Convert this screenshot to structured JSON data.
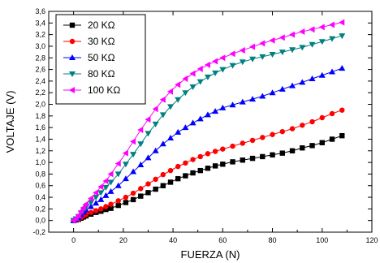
{
  "chart_data": {
    "type": "line",
    "xlabel": "FUERZA (N)",
    "ylabel": "VOLTAJE (V)",
    "xlim": [
      -10,
      120
    ],
    "ylim": [
      -0.2,
      3.6
    ],
    "xticks": [
      "0",
      "20",
      "40",
      "60",
      "80",
      "100",
      "120"
    ],
    "yticks": [
      "-0,2",
      "0,0",
      "0,2",
      "0,4",
      "0,6",
      "0,8",
      "1,0",
      "1,2",
      "1,4",
      "1,6",
      "1,8",
      "2,0",
      "2,2",
      "2,4",
      "2,6",
      "2,8",
      "3,0",
      "3,2",
      "3,4",
      "3,6"
    ],
    "legend_position": "top-left",
    "series": [
      {
        "name": "20 KΩ",
        "color": "#000000",
        "marker": "square",
        "x": [
          0,
          1,
          2,
          3,
          4,
          5,
          7,
          9,
          11,
          13,
          15,
          18,
          21,
          24,
          27,
          30,
          33,
          36,
          39,
          42,
          45,
          48,
          51,
          54,
          57,
          60,
          64,
          68,
          72,
          76,
          80,
          84,
          88,
          92,
          96,
          100,
          104,
          108
        ],
        "y": [
          0.0,
          0.01,
          0.02,
          0.04,
          0.06,
          0.08,
          0.11,
          0.14,
          0.16,
          0.19,
          0.21,
          0.26,
          0.31,
          0.36,
          0.42,
          0.48,
          0.54,
          0.6,
          0.66,
          0.72,
          0.77,
          0.82,
          0.86,
          0.9,
          0.94,
          0.97,
          1.01,
          1.04,
          1.07,
          1.1,
          1.13,
          1.16,
          1.2,
          1.25,
          1.29,
          1.34,
          1.4,
          1.46
        ]
      },
      {
        "name": "30 KΩ",
        "color": "#ff0000",
        "marker": "circle",
        "x": [
          0,
          1,
          2,
          3,
          4,
          5,
          7,
          9,
          11,
          13,
          15,
          18,
          21,
          24,
          27,
          30,
          33,
          36,
          39,
          42,
          45,
          48,
          51,
          54,
          57,
          60,
          64,
          68,
          72,
          76,
          80,
          84,
          88,
          92,
          96,
          100,
          104,
          108
        ],
        "y": [
          0.0,
          0.01,
          0.02,
          0.05,
          0.08,
          0.1,
          0.14,
          0.17,
          0.2,
          0.24,
          0.28,
          0.34,
          0.4,
          0.47,
          0.55,
          0.63,
          0.71,
          0.79,
          0.86,
          0.93,
          0.99,
          1.05,
          1.1,
          1.15,
          1.19,
          1.23,
          1.28,
          1.33,
          1.38,
          1.43,
          1.48,
          1.53,
          1.58,
          1.64,
          1.7,
          1.77,
          1.84,
          1.9
        ]
      },
      {
        "name": "50 KΩ",
        "color": "#0000ff",
        "marker": "triangle-up",
        "x": [
          0,
          1,
          2,
          3,
          4,
          5,
          7,
          9,
          11,
          13,
          15,
          18,
          21,
          24,
          27,
          30,
          33,
          36,
          39,
          42,
          45,
          48,
          51,
          54,
          57,
          60,
          64,
          68,
          72,
          76,
          80,
          84,
          88,
          92,
          96,
          100,
          104,
          108
        ],
        "y": [
          0.0,
          0.02,
          0.05,
          0.1,
          0.14,
          0.18,
          0.24,
          0.3,
          0.36,
          0.43,
          0.5,
          0.6,
          0.72,
          0.84,
          0.96,
          1.08,
          1.2,
          1.32,
          1.42,
          1.52,
          1.6,
          1.68,
          1.75,
          1.82,
          1.88,
          1.94,
          1.99,
          2.04,
          2.09,
          2.14,
          2.2,
          2.26,
          2.32,
          2.38,
          2.44,
          2.5,
          2.56,
          2.62
        ]
      },
      {
        "name": "80 KΩ",
        "color": "#008080",
        "marker": "triangle-down",
        "x": [
          0,
          1,
          2,
          3,
          4,
          5,
          7,
          9,
          11,
          13,
          15,
          18,
          21,
          24,
          27,
          30,
          33,
          36,
          39,
          42,
          45,
          48,
          51,
          54,
          57,
          60,
          64,
          68,
          72,
          76,
          80,
          84,
          88,
          92,
          96,
          100,
          104,
          108
        ],
        "y": [
          0.0,
          0.03,
          0.07,
          0.13,
          0.18,
          0.23,
          0.31,
          0.4,
          0.48,
          0.57,
          0.66,
          0.8,
          0.97,
          1.14,
          1.32,
          1.5,
          1.66,
          1.82,
          1.96,
          2.08,
          2.2,
          2.3,
          2.39,
          2.47,
          2.54,
          2.6,
          2.67,
          2.73,
          2.78,
          2.82,
          2.86,
          2.9,
          2.94,
          2.98,
          3.03,
          3.08,
          3.13,
          3.18
        ]
      },
      {
        "name": "100 KΩ",
        "color": "#ff00ff",
        "marker": "triangle-left",
        "x": [
          0,
          1,
          2,
          3,
          4,
          5,
          7,
          9,
          11,
          13,
          15,
          18,
          21,
          24,
          27,
          30,
          33,
          36,
          39,
          42,
          45,
          48,
          51,
          54,
          57,
          60,
          64,
          68,
          72,
          76,
          80,
          84,
          88,
          92,
          96,
          100,
          104,
          108
        ],
        "y": [
          0.0,
          0.04,
          0.09,
          0.16,
          0.22,
          0.28,
          0.38,
          0.48,
          0.58,
          0.68,
          0.8,
          0.98,
          1.16,
          1.36,
          1.56,
          1.74,
          1.92,
          2.08,
          2.22,
          2.34,
          2.44,
          2.53,
          2.61,
          2.68,
          2.74,
          2.8,
          2.87,
          2.93,
          2.99,
          3.05,
          3.1,
          3.15,
          3.2,
          3.25,
          3.29,
          3.33,
          3.37,
          3.41
        ]
      }
    ]
  }
}
